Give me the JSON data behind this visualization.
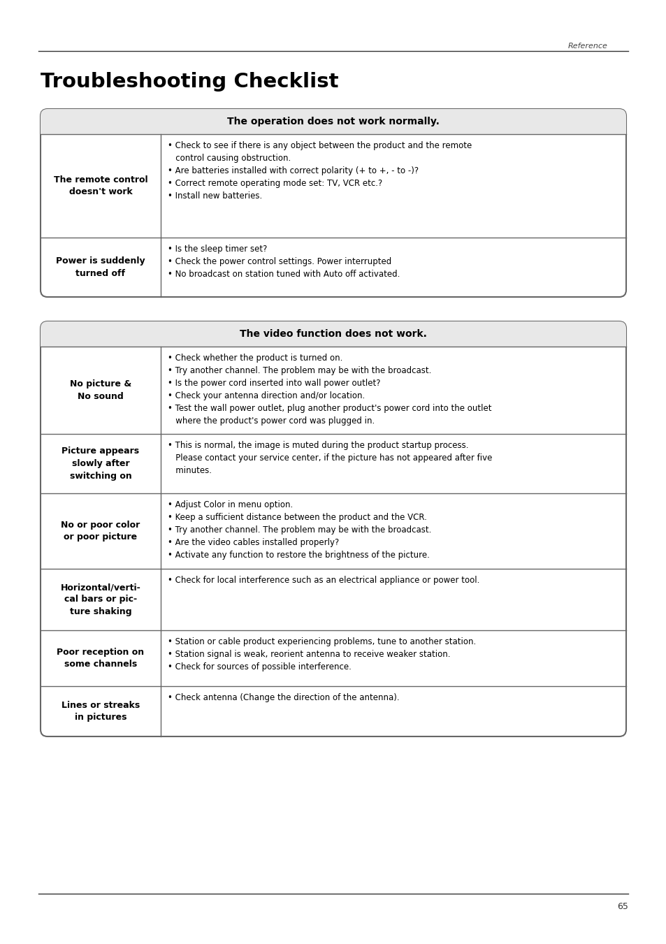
{
  "page_label": "Reference",
  "page_number": "65",
  "title": "Troubleshooting Checklist",
  "bg_color": "#ffffff",
  "header_bg": "#e8e8e8",
  "table_border_color": "#666666",
  "table1": {
    "header": "The operation does not work normally.",
    "rows": [
      {
        "label": "The remote control\ndoesn't work",
        "content": "• Check to see if there is any object between the product and the remote\n   control causing obstruction.\n• Are batteries installed with correct polarity (+ to +, - to -)?\n• Correct remote operating mode set: TV, VCR etc.?\n• Install new batteries."
      },
      {
        "label": "Power is suddenly\nturned off",
        "content": "• Is the sleep timer set?\n• Check the power control settings. Power interrupted\n• No broadcast on station tuned with Auto off activated."
      }
    ]
  },
  "table2": {
    "header": "The video function does not work.",
    "rows": [
      {
        "label": "No picture &\nNo sound",
        "content": "• Check whether the product is turned on.\n• Try another channel. The problem may be with the broadcast.\n• Is the power cord inserted into wall power outlet?\n• Check your antenna direction and/or location.\n• Test the wall power outlet, plug another product's power cord into the outlet\n   where the product's power cord was plugged in."
      },
      {
        "label": "Picture appears\nslowly after\nswitching on",
        "content": "• This is normal, the image is muted during the product startup process.\n   Please contact your service center, if the picture has not appeared after five\n   minutes."
      },
      {
        "label": "No or poor color\nor poor picture",
        "content": "• Adjust Color in menu option.\n• Keep a sufficient distance between the product and the VCR.\n• Try another channel. The problem may be with the broadcast.\n• Are the video cables installed properly?\n• Activate any function to restore the brightness of the picture."
      },
      {
        "label": "Horizontal/verti-\ncal bars or pic-\nture shaking",
        "content": "• Check for local interference such as an electrical appliance or power tool."
      },
      {
        "label": "Poor reception on\nsome channels",
        "content": "• Station or cable product experiencing problems, tune to another station.\n• Station signal is weak, reorient antenna to receive weaker station.\n• Check for sources of possible interference."
      },
      {
        "label": "Lines or streaks\nin pictures",
        "content": "• Check antenna (Change the direction of the antenna)."
      }
    ]
  }
}
